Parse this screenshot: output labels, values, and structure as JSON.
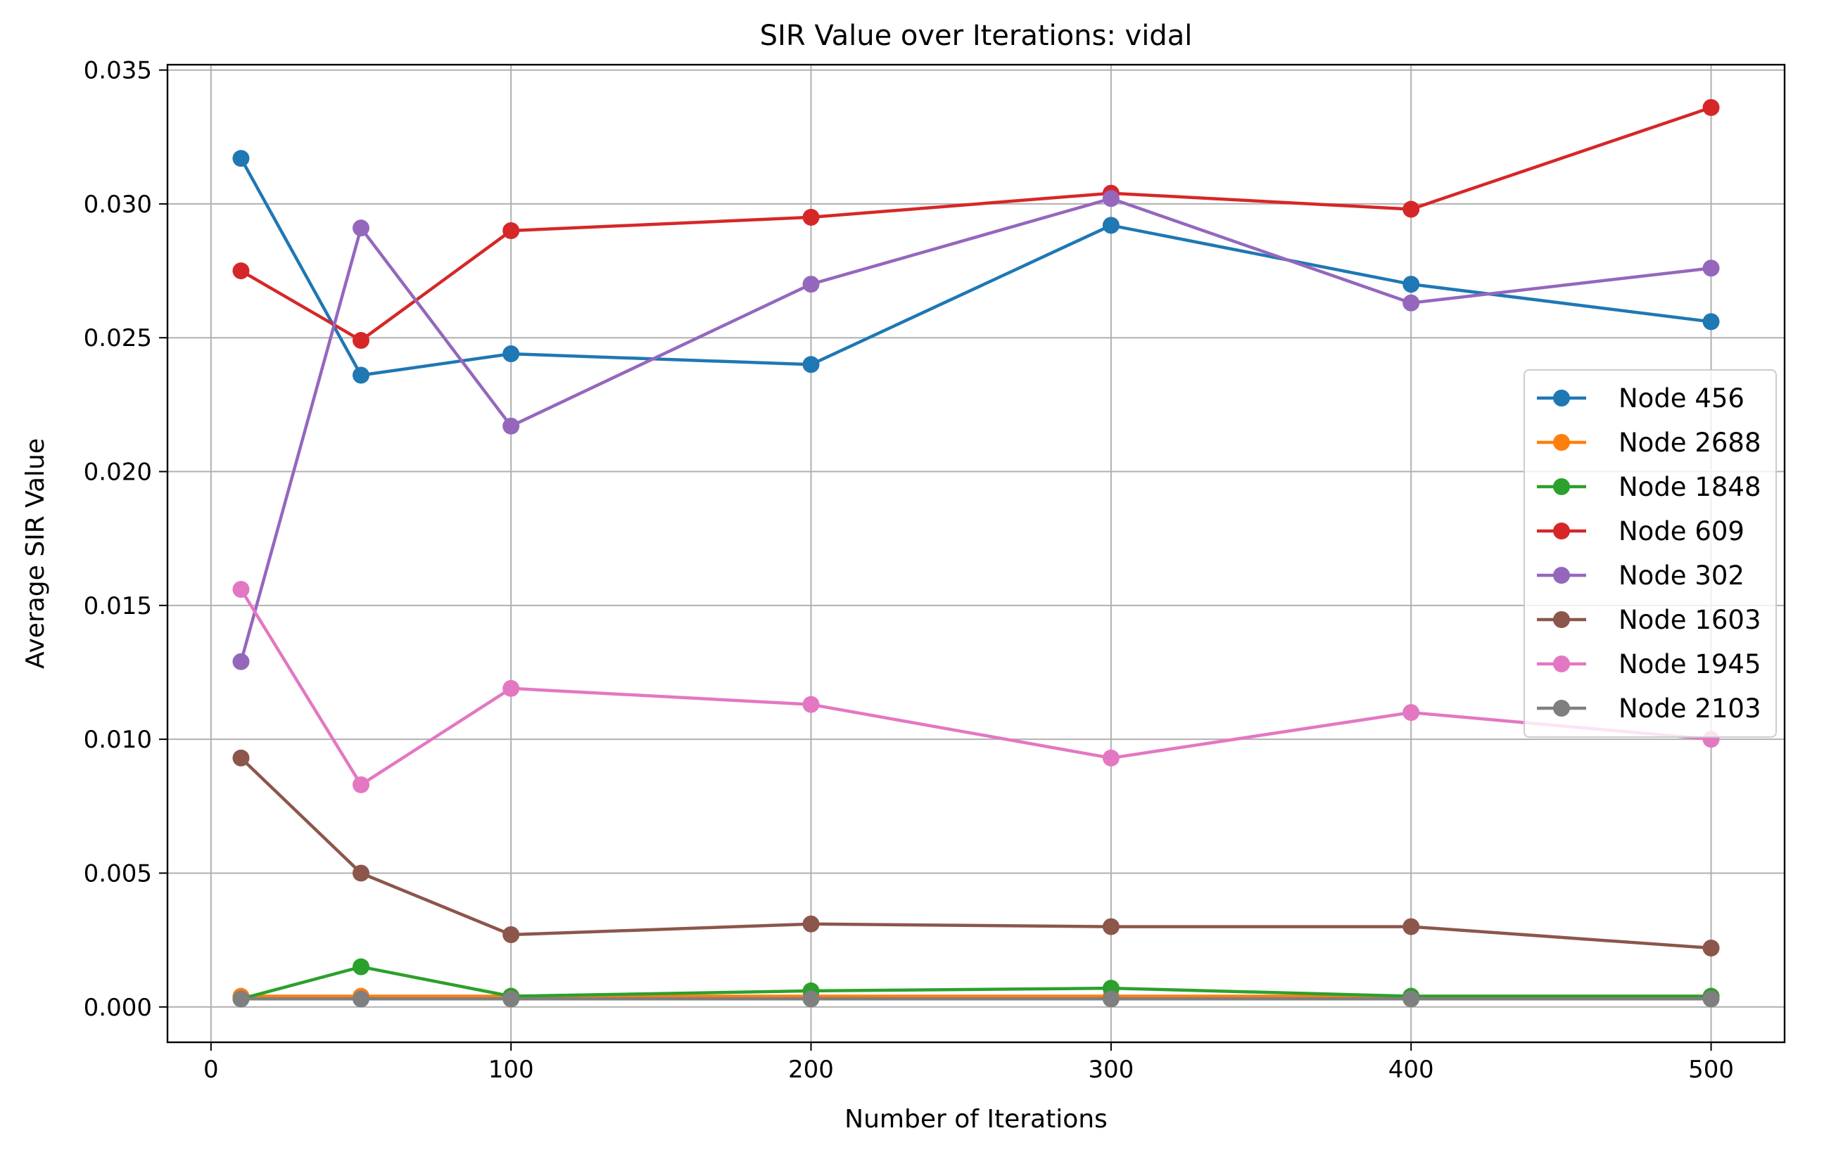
{
  "chart_data": {
    "type": "line",
    "title": "SIR Value over Iterations: vidal",
    "xlabel": "Number of Iterations",
    "ylabel": "Average SIR Value",
    "x": [
      10,
      50,
      100,
      200,
      300,
      400,
      500
    ],
    "xlim": [
      -14.5,
      524.5
    ],
    "ylim": [
      -0.00132,
      0.0352
    ],
    "xticks": [
      0,
      100,
      200,
      300,
      400,
      500
    ],
    "xtick_labels": [
      "0",
      "100",
      "200",
      "300",
      "400",
      "500"
    ],
    "yticks": [
      0.0,
      0.005,
      0.01,
      0.015,
      0.02,
      0.025,
      0.03,
      0.035
    ],
    "ytick_labels": [
      "0.000",
      "0.005",
      "0.010",
      "0.015",
      "0.020",
      "0.025",
      "0.030",
      "0.035"
    ],
    "grid": true,
    "legend_position": "center-right",
    "marker": "circle",
    "series": [
      {
        "name": "Node 456",
        "color": "#1f77b4",
        "values": [
          0.0317,
          0.0236,
          0.0244,
          0.024,
          0.0292,
          0.027,
          0.0256
        ]
      },
      {
        "name": "Node 2688",
        "color": "#ff7f0e",
        "values": [
          0.0004,
          0.0004,
          0.0004,
          0.0004,
          0.0004,
          0.0004,
          0.0004
        ]
      },
      {
        "name": "Node 1848",
        "color": "#2ca02c",
        "values": [
          0.0003,
          0.0015,
          0.0004,
          0.0006,
          0.0007,
          0.0004,
          0.0004
        ]
      },
      {
        "name": "Node 609",
        "color": "#d62728",
        "values": [
          0.0275,
          0.0249,
          0.029,
          0.0295,
          0.0304,
          0.0298,
          0.0336
        ]
      },
      {
        "name": "Node 302",
        "color": "#9467bd",
        "values": [
          0.0129,
          0.0291,
          0.0217,
          0.027,
          0.0302,
          0.0263,
          0.0276
        ]
      },
      {
        "name": "Node 1603",
        "color": "#8c564b",
        "values": [
          0.0093,
          0.005,
          0.0027,
          0.0031,
          0.003,
          0.003,
          0.0022
        ]
      },
      {
        "name": "Node 1945",
        "color": "#e377c2",
        "values": [
          0.0156,
          0.0083,
          0.0119,
          0.0113,
          0.0093,
          0.011,
          0.01
        ]
      },
      {
        "name": "Node 2103",
        "color": "#7f7f7f",
        "values": [
          0.0003,
          0.0003,
          0.0003,
          0.0003,
          0.0003,
          0.0003,
          0.0003
        ]
      }
    ]
  }
}
